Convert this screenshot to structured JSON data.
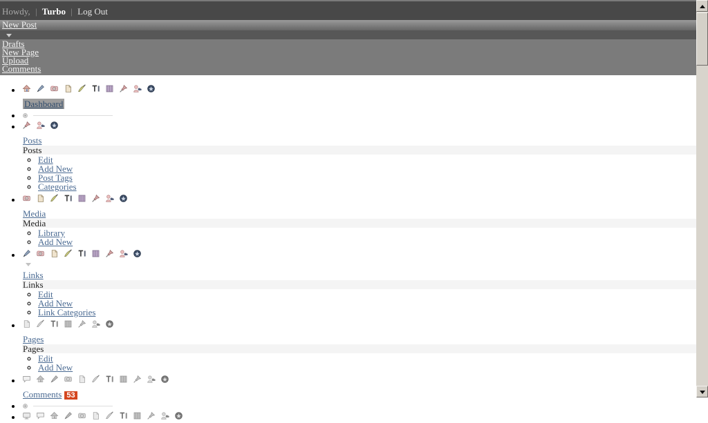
{
  "header": {
    "greeting": "Howdy,",
    "separator": "|",
    "username": "Turbo",
    "logout_label": "Log Out"
  },
  "favorites": {
    "new_post_label": "New Post",
    "caret_icon": "caret-down-icon",
    "shortcuts": [
      "Drafts",
      "New Page",
      "Upload",
      "Comments"
    ]
  },
  "menu_items": [
    {
      "kind": "item",
      "icons": [
        "house",
        "pen",
        "camera",
        "page",
        "brush",
        "typography",
        "theater",
        "pin",
        "users",
        "gear"
      ],
      "gray": false,
      "link": "Dashboard",
      "highlight": true
    },
    {
      "kind": "separator",
      "icon": "bullet-dot"
    },
    {
      "kind": "item",
      "icons": [
        "pin",
        "users",
        "gear"
      ],
      "gray": false,
      "link": "Posts",
      "subtitle": "Posts",
      "sublinks": [
        "Edit",
        "Add New",
        "Post Tags",
        "Categories"
      ]
    },
    {
      "kind": "item",
      "icons": [
        "camera",
        "page",
        "brush",
        "typography",
        "theater",
        "pin",
        "users",
        "gear"
      ],
      "gray": false,
      "link": "Media",
      "subtitle": "Media",
      "sublinks": [
        "Library",
        "Add New"
      ]
    },
    {
      "kind": "item",
      "icons": [
        "pen",
        "camera",
        "page",
        "brush",
        "typography",
        "theater",
        "pin",
        "users",
        "gear"
      ],
      "gray": false,
      "caret_below": true,
      "link": "Links",
      "subtitle": "Links",
      "sublinks": [
        "Edit",
        "Add New",
        "Link Categories"
      ]
    },
    {
      "kind": "item",
      "icons": [
        "page",
        "brush",
        "typography",
        "theater",
        "pin",
        "users",
        "gear"
      ],
      "gray": true,
      "link": "Pages",
      "subtitle": "Pages",
      "sublinks": [
        "Edit",
        "Add New"
      ]
    },
    {
      "kind": "item",
      "icons": [
        "bubble",
        "house",
        "pen",
        "camera",
        "page",
        "brush",
        "typography",
        "theater",
        "pin",
        "users",
        "gear"
      ],
      "gray": true,
      "link": "Comments",
      "badge": "53"
    },
    {
      "kind": "separator",
      "icon": "bullet-dot"
    },
    {
      "kind": "item",
      "icons": [
        "monitor",
        "bubble",
        "house",
        "pen",
        "camera",
        "page",
        "brush",
        "typography",
        "theater",
        "pin",
        "users",
        "gear"
      ],
      "gray": true
    }
  ],
  "colors": {
    "header_bg": "#484848",
    "panel_gray": "#7b7b7b",
    "link_blue": "#4a6a92",
    "badge_bg": "#d4461f",
    "band_bg": "#f4f4f4"
  },
  "scrollbar": {
    "up_icon": "arrow-up-icon",
    "down_icon": "arrow-down-icon"
  }
}
